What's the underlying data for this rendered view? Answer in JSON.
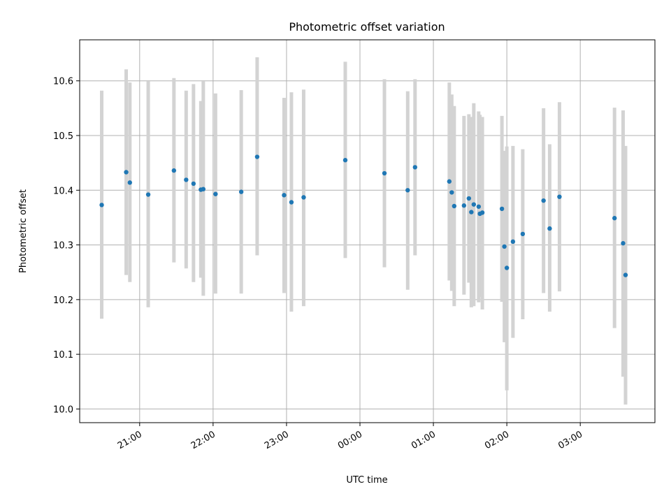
{
  "chart_data": {
    "type": "scatter",
    "title": "Photometric offset variation",
    "xlabel": "UTC time",
    "ylabel": "Photometric offset",
    "x_unit": "hours (UTC clock, continuing past midnight)",
    "xlim": [
      "20:11",
      "04:01"
    ],
    "ylim": [
      9.975,
      10.675
    ],
    "x_ticks": [
      "21:00",
      "22:00",
      "23:00",
      "00:00",
      "01:00",
      "02:00",
      "03:00"
    ],
    "y_ticks": [
      "10.0",
      "10.1",
      "10.2",
      "10.3",
      "10.4",
      "10.5",
      "10.6"
    ],
    "grid": true,
    "colors": {
      "points": "#1f77b4",
      "errorbars": "#d3d3d3",
      "grid": "#b0b0b0"
    },
    "points": [
      {
        "t": "20:29",
        "y": 10.373,
        "ylo": 10.165,
        "yhi": 10.582
      },
      {
        "t": "20:49",
        "y": 10.433,
        "ylo": 10.245,
        "yhi": 10.621
      },
      {
        "t": "20:52",
        "y": 10.414,
        "ylo": 10.232,
        "yhi": 10.597
      },
      {
        "t": "21:07",
        "y": 10.392,
        "ylo": 10.186,
        "yhi": 10.599
      },
      {
        "t": "21:28",
        "y": 10.436,
        "ylo": 10.268,
        "yhi": 10.605
      },
      {
        "t": "21:38",
        "y": 10.419,
        "ylo": 10.257,
        "yhi": 10.582
      },
      {
        "t": "21:44",
        "y": 10.412,
        "ylo": 10.232,
        "yhi": 10.594
      },
      {
        "t": "21:50",
        "y": 10.401,
        "ylo": 10.24,
        "yhi": 10.563
      },
      {
        "t": "21:52",
        "y": 10.402,
        "ylo": 10.207,
        "yhi": 10.599
      },
      {
        "t": "22:02",
        "y": 10.393,
        "ylo": 10.211,
        "yhi": 10.577
      },
      {
        "t": "22:23",
        "y": 10.397,
        "ylo": 10.211,
        "yhi": 10.583
      },
      {
        "t": "22:36",
        "y": 10.461,
        "ylo": 10.281,
        "yhi": 10.643
      },
      {
        "t": "22:58",
        "y": 10.391,
        "ylo": 10.212,
        "yhi": 10.569
      },
      {
        "t": "23:04",
        "y": 10.378,
        "ylo": 10.178,
        "yhi": 10.579
      },
      {
        "t": "23:14",
        "y": 10.387,
        "ylo": 10.188,
        "yhi": 10.584
      },
      {
        "t": "23:48",
        "y": 10.455,
        "ylo": 10.276,
        "yhi": 10.635
      },
      {
        "t": "00:20",
        "y": 10.431,
        "ylo": 10.259,
        "yhi": 10.603
      },
      {
        "t": "00:39",
        "y": 10.4,
        "ylo": 10.218,
        "yhi": 10.581
      },
      {
        "t": "00:45",
        "y": 10.442,
        "ylo": 10.281,
        "yhi": 10.603
      },
      {
        "t": "01:13",
        "y": 10.416,
        "ylo": 10.235,
        "yhi": 10.597
      },
      {
        "t": "01:15",
        "y": 10.396,
        "ylo": 10.216,
        "yhi": 10.575
      },
      {
        "t": "01:17",
        "y": 10.371,
        "ylo": 10.188,
        "yhi": 10.554
      },
      {
        "t": "01:25",
        "y": 10.372,
        "ylo": 10.209,
        "yhi": 10.536
      },
      {
        "t": "01:29",
        "y": 10.385,
        "ylo": 10.231,
        "yhi": 10.539
      },
      {
        "t": "01:31",
        "y": 10.36,
        "ylo": 10.186,
        "yhi": 10.534
      },
      {
        "t": "01:33",
        "y": 10.374,
        "ylo": 10.188,
        "yhi": 10.559
      },
      {
        "t": "01:37",
        "y": 10.37,
        "ylo": 10.195,
        "yhi": 10.544
      },
      {
        "t": "01:38",
        "y": 10.357,
        "ylo": 10.205,
        "yhi": 10.538
      },
      {
        "t": "01:40",
        "y": 10.359,
        "ylo": 10.182,
        "yhi": 10.534
      },
      {
        "t": "01:56",
        "y": 10.366,
        "ylo": 10.196,
        "yhi": 10.536
      },
      {
        "t": "01:58",
        "y": 10.297,
        "ylo": 10.122,
        "yhi": 10.472
      },
      {
        "t": "02:00",
        "y": 10.258,
        "ylo": 10.034,
        "yhi": 10.48
      },
      {
        "t": "02:05",
        "y": 10.306,
        "ylo": 10.13,
        "yhi": 10.481
      },
      {
        "t": "02:13",
        "y": 10.32,
        "ylo": 10.164,
        "yhi": 10.475
      },
      {
        "t": "02:30",
        "y": 10.381,
        "ylo": 10.212,
        "yhi": 10.55
      },
      {
        "t": "02:35",
        "y": 10.33,
        "ylo": 10.178,
        "yhi": 10.484
      },
      {
        "t": "02:43",
        "y": 10.388,
        "ylo": 10.215,
        "yhi": 10.561
      },
      {
        "t": "03:28",
        "y": 10.349,
        "ylo": 10.148,
        "yhi": 10.551
      },
      {
        "t": "03:35",
        "y": 10.303,
        "ylo": 10.059,
        "yhi": 10.546
      },
      {
        "t": "03:37",
        "y": 10.245,
        "ylo": 10.008,
        "yhi": 10.481
      }
    ]
  }
}
